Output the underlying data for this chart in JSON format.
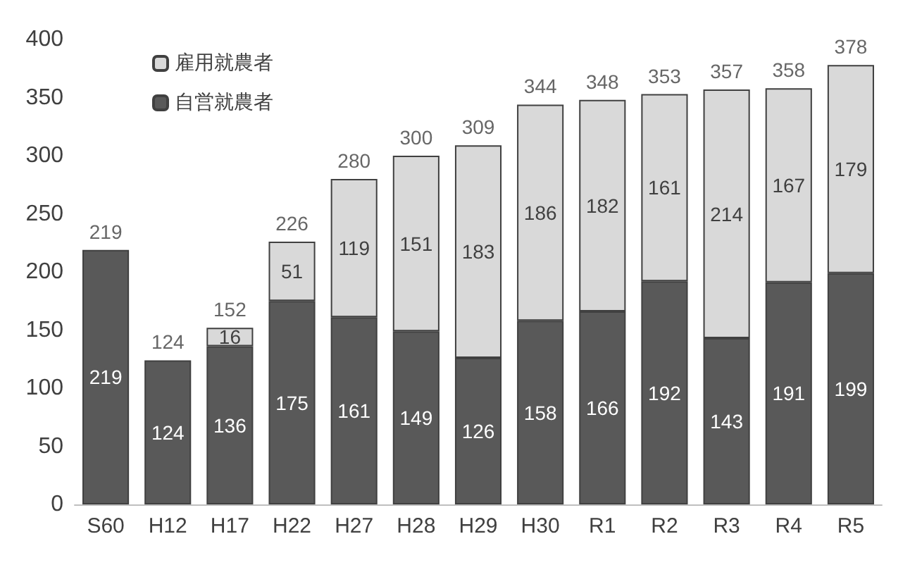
{
  "chart_data": {
    "type": "bar",
    "stacked": true,
    "categories": [
      "S60",
      "H12",
      "H17",
      "H22",
      "H27",
      "H28",
      "H29",
      "H30",
      "R1",
      "R2",
      "R3",
      "R4",
      "R5"
    ],
    "series": [
      {
        "name": "自営就農者",
        "color": "#595959",
        "values": [
          219,
          124,
          136,
          175,
          161,
          149,
          126,
          158,
          166,
          192,
          143,
          191,
          199
        ]
      },
      {
        "name": "雇用就農者",
        "color": "#d9d9d9",
        "values": [
          null,
          null,
          16,
          51,
          119,
          151,
          183,
          186,
          182,
          161,
          214,
          167,
          179
        ]
      }
    ],
    "totals": [
      "219",
      "124",
      "152",
      "226",
      "280",
      "300",
      "309",
      "344",
      "348",
      "353",
      "357",
      "358",
      "378"
    ],
    "data_labels": true,
    "ylim": [
      0,
      400
    ],
    "yticks": [
      0,
      50,
      100,
      150,
      200,
      250,
      300,
      350,
      400
    ],
    "grid": false,
    "legend": "top left"
  }
}
